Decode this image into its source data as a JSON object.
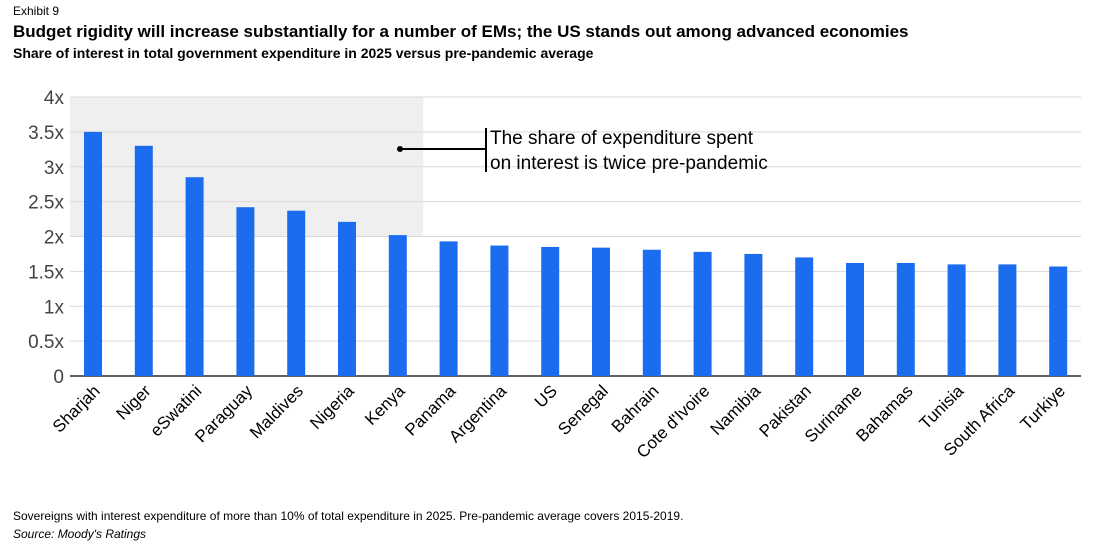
{
  "header": {
    "exhibit": "Exhibit 9",
    "title": "Budget rigidity will increase substantially for a number of EMs; the US stands out among advanced economies",
    "subtitle": "Share of interest in total government expenditure in 2025 versus pre-pandemic average"
  },
  "footer": {
    "note": "Sovereigns with interest expenditure of more than 10% of total expenditure in 2025. Pre-pandemic average covers 2015-2019.",
    "source": "Source: Moody's Ratings"
  },
  "colors": {
    "bar": "#1c6cf0",
    "highlight_band": "#efefef",
    "grid": "#d9d9d9"
  },
  "chart_data": {
    "type": "bar",
    "categories": [
      "Sharjah",
      "Niger",
      "eSwatini",
      "Paraguay",
      "Maldives",
      "Nigeria",
      "Kenya",
      "Panama",
      "Argentina",
      "US",
      "Senegal",
      "Bahrain",
      "Cote d'Ivoire",
      "Namibia",
      "Pakistan",
      "Suriname",
      "Bahamas",
      "Tunisia",
      "South Africa",
      "Turkiye"
    ],
    "values": [
      3.5,
      3.3,
      2.85,
      2.42,
      2.37,
      2.21,
      2.02,
      1.93,
      1.87,
      1.85,
      1.84,
      1.81,
      1.78,
      1.75,
      1.7,
      1.62,
      1.62,
      1.6,
      1.6,
      1.57
    ],
    "ylim": [
      0,
      4
    ],
    "yticks": [
      "0",
      "0.5x",
      "1x",
      "1.5x",
      "2x",
      "2.5x",
      "3x",
      "3.5x",
      "4x"
    ],
    "grid": true,
    "highlight_region": {
      "categories_from": "Sharjah",
      "categories_to": "Kenya",
      "y_from": 2,
      "y_to": 4
    },
    "annotation": {
      "lines": [
        "The share of expenditure spent",
        "on interest is twice pre-pandemic"
      ]
    }
  }
}
